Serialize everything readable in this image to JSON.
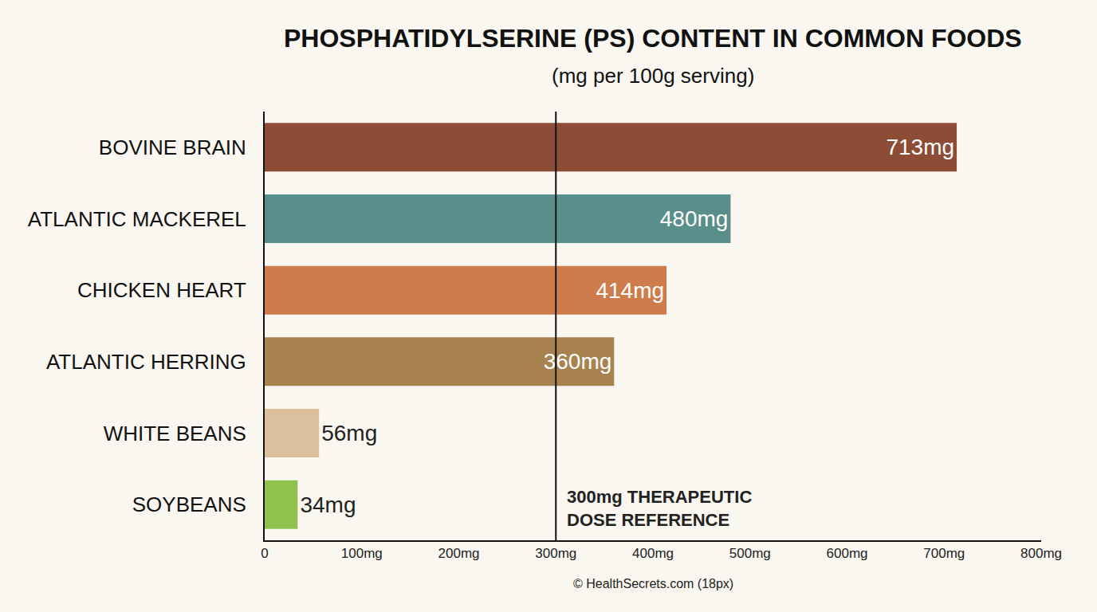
{
  "chart_data": {
    "type": "bar",
    "orientation": "horizontal",
    "title": "PHOSPHATIDYLSERINE (PS) CONTENT IN COMMON FOODS",
    "subtitle": "(mg per 100g serving)",
    "categories": [
      "BOVINE BRAIN",
      "ATLANTIC MACKEREL",
      "CHICKEN HEART",
      "ATLANTIC HERRING",
      "WHITE BEANS",
      "SOYBEANS"
    ],
    "values": [
      713,
      480,
      414,
      360,
      56,
      34
    ],
    "value_labels": [
      "713mg",
      "480mg",
      "414mg",
      "360mg",
      "56mg",
      "34mg"
    ],
    "colors": [
      "#8c4c36",
      "#5a8e8b",
      "#cf7c4c",
      "#a8824f",
      "#dcbf9c",
      "#8fc14c"
    ],
    "data_labels": true,
    "xlim": [
      0,
      800
    ],
    "xticks": [
      0,
      {
        "value": 100,
        "label": "100mg"
      },
      {
        "value": 200,
        "label": "200mg"
      },
      {
        "value": 300,
        "label": "300mg"
      },
      {
        "value": 400,
        "label": "400mg"
      },
      {
        "value": 500,
        "label": "500mg"
      },
      {
        "value": 600,
        "label": "600mg"
      },
      {
        "value": 700,
        "label": "700mg"
      },
      {
        "value": 800,
        "label": "800mg"
      }
    ],
    "grid": false,
    "reference_line": {
      "value": 300,
      "label": "300mg THERAPEUTIC DOSE REFERENCE"
    },
    "source": "© HealthSecrets.com (18px)"
  }
}
